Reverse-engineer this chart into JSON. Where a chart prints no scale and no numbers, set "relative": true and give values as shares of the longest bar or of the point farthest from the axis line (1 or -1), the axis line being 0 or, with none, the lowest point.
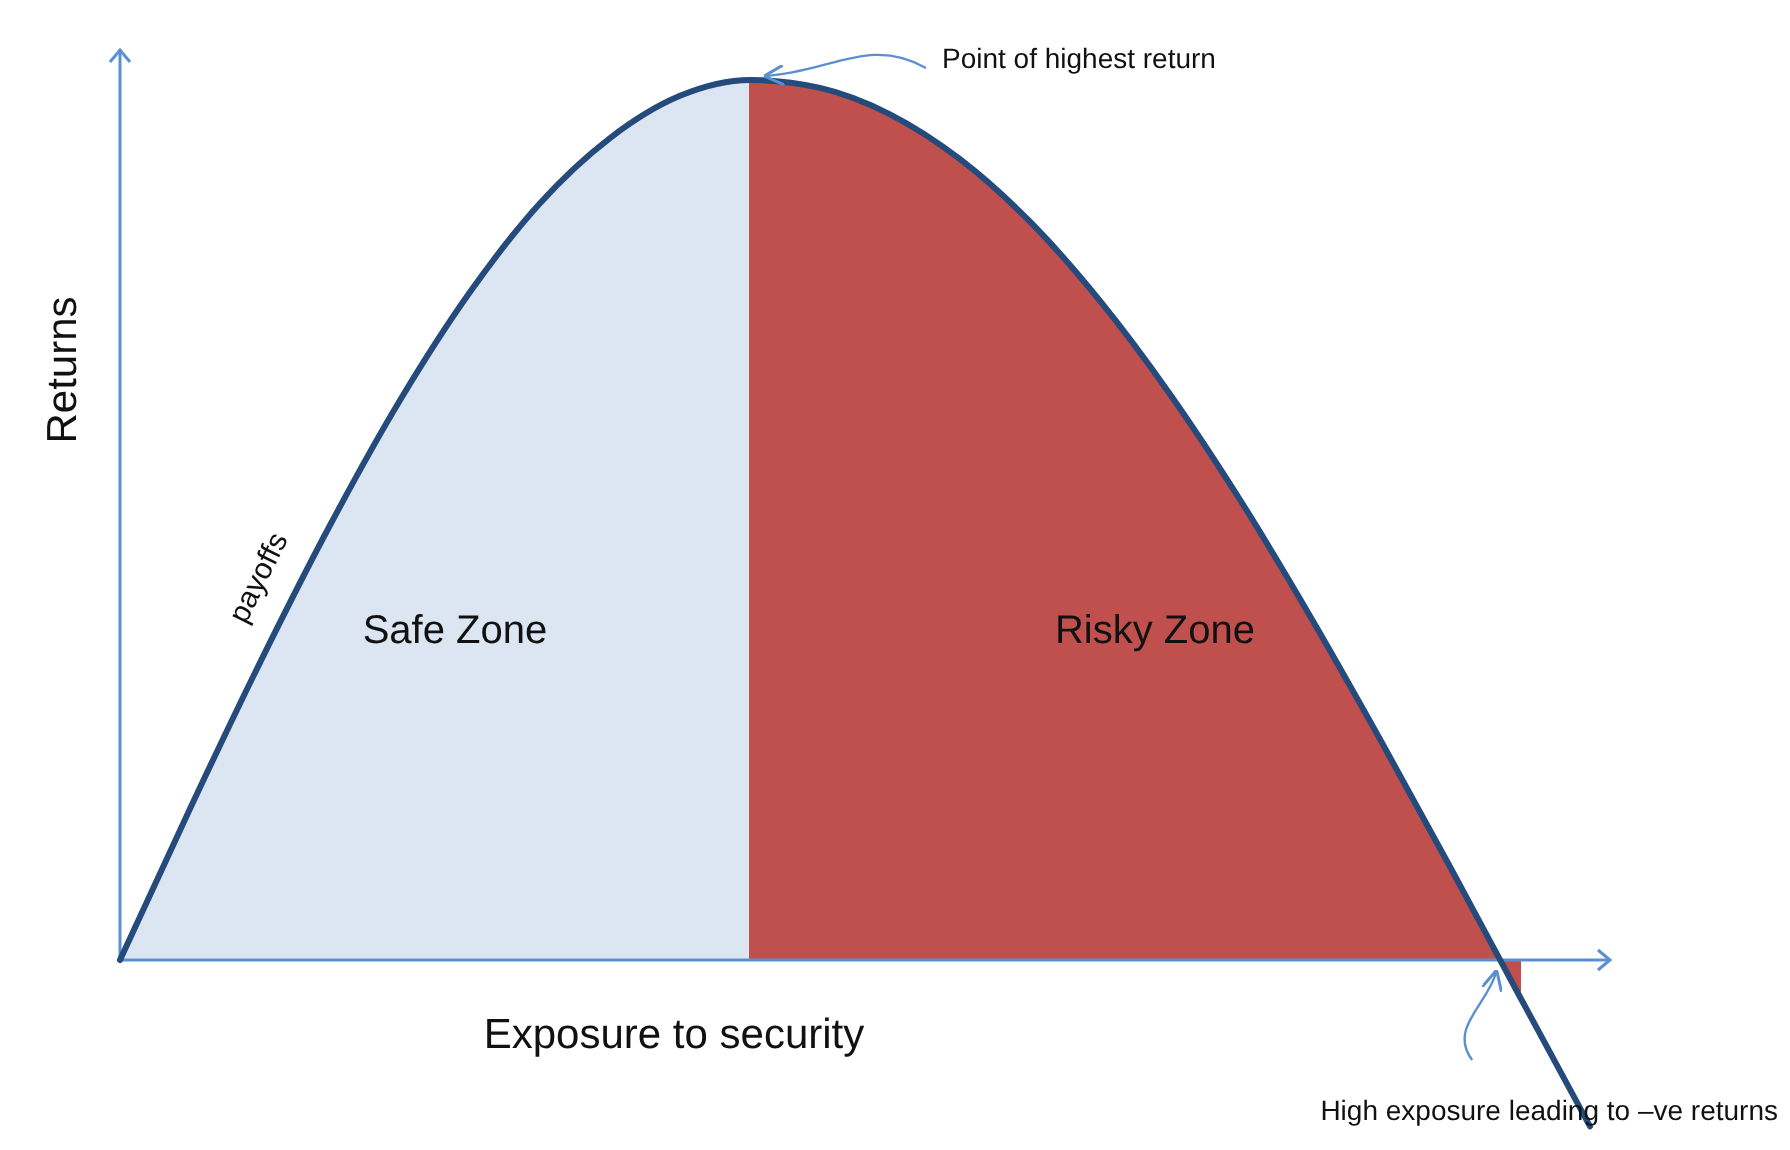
{
  "chart_data": {
    "type": "line",
    "relative": true,
    "xlabel": "Exposure to security",
    "ylabel": "Returns",
    "categories": [
      null,
      null,
      null,
      null,
      null,
      null,
      null,
      null,
      null,
      null,
      null,
      null,
      null,
      null,
      null,
      null,
      null,
      null,
      null,
      null,
      null,
      null
    ],
    "series": [
      {
        "name": "Safe Zone",
        "type": "area",
        "color": "#dce6f2",
        "values": [
          0,
          0.172,
          0.338,
          0.494,
          0.636,
          0.759,
          0.86,
          0.934,
          0.982,
          1,
          null,
          null,
          null,
          null,
          null,
          null,
          null,
          null,
          null,
          null,
          null,
          null
        ]
      },
      {
        "name": "Risky Zone",
        "type": "area",
        "color": "#c0504d",
        "values": [
          null,
          null,
          null,
          null,
          null,
          null,
          null,
          null,
          null,
          1,
          0.991,
          0.961,
          0.91,
          0.839,
          0.749,
          0.643,
          0.523,
          0.391,
          0.251,
          0.106,
          -0.042,
          null
        ]
      },
      {
        "name": "payoffs",
        "color": "#254a7c",
        "values": [
          0,
          0.172,
          0.338,
          0.494,
          0.636,
          0.759,
          0.86,
          0.934,
          0.982,
          1,
          0.991,
          0.961,
          0.91,
          0.839,
          0.749,
          0.643,
          0.523,
          0.391,
          0.251,
          0.106,
          -0.042,
          -0.189
        ]
      }
    ],
    "ref_lines": [
      {
        "axis": "y",
        "value": 0,
        "color": "#5b8fd0"
      }
    ],
    "annotations": [
      "Point of highest return",
      "High exposure leading to –ve returns"
    ]
  }
}
